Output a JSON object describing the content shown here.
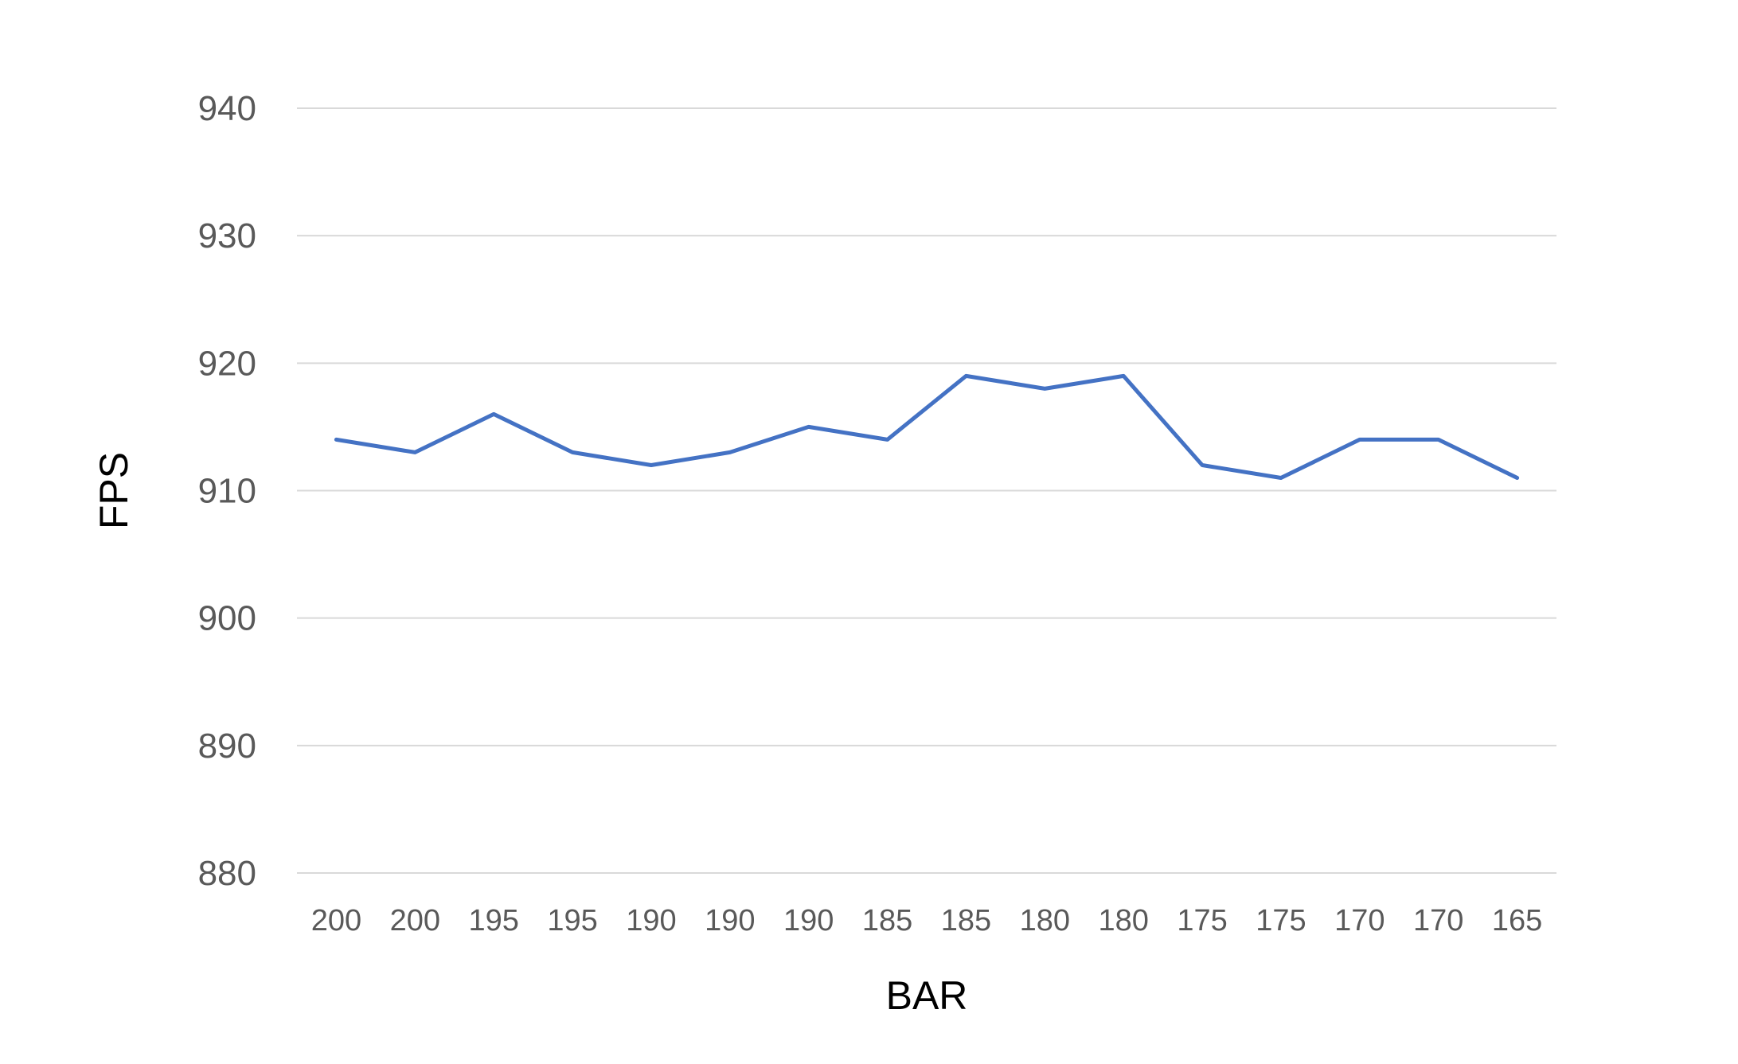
{
  "chart_data": {
    "type": "line",
    "title": "",
    "xlabel": "BAR",
    "ylabel": "FPS",
    "categories": [
      "200",
      "200",
      "195",
      "195",
      "190",
      "190",
      "190",
      "185",
      "185",
      "180",
      "180",
      "175",
      "175",
      "170",
      "170",
      "165"
    ],
    "series": [
      {
        "values": [
          914,
          913,
          916,
          913,
          912,
          913,
          915,
          914,
          919,
          918,
          919,
          912,
          911,
          914,
          914,
          911
        ],
        "color": "#4472c4"
      }
    ],
    "ylim": [
      880,
      940
    ],
    "yticks": [
      880,
      890,
      900,
      910,
      920,
      930,
      940
    ],
    "grid": true,
    "legend": "none"
  }
}
